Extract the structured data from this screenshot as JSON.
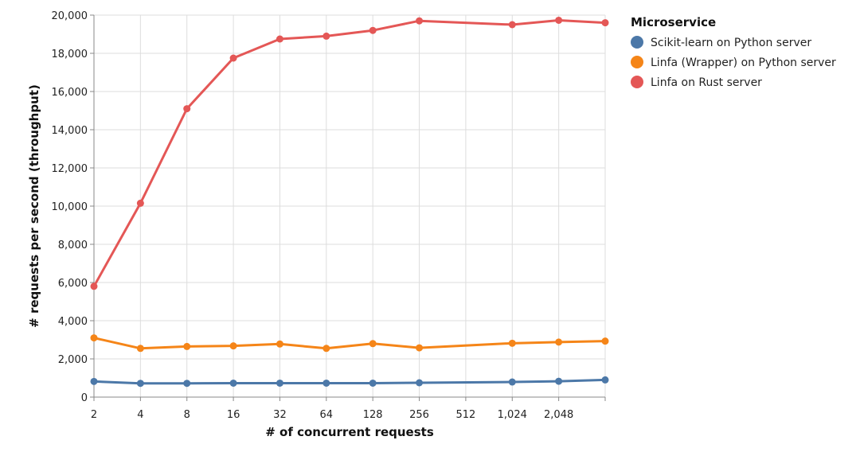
{
  "chart_data": {
    "type": "line",
    "title": "",
    "xlabel": "# of concurrent requests",
    "ylabel": "# requests per second (throughput)",
    "ylim": [
      0,
      20000
    ],
    "yticks": [
      0,
      2000,
      4000,
      6000,
      8000,
      10000,
      12000,
      14000,
      16000,
      18000,
      20000
    ],
    "ytick_labels": [
      "0",
      "2,000",
      "4,000",
      "6,000",
      "8,000",
      "10,000",
      "12,000",
      "14,000",
      "16,000",
      "18,000",
      "20,000"
    ],
    "xscale": "log2",
    "xlim": [
      2,
      4096
    ],
    "xticks": [
      2,
      4,
      8,
      16,
      32,
      64,
      128,
      256,
      512,
      1024,
      2048
    ],
    "xtick_labels": [
      "2",
      "4",
      "8",
      "16",
      "32",
      "64",
      "128",
      "256",
      "512",
      "1,024",
      "2,048"
    ],
    "grid": true,
    "legend_title": "Microservice",
    "legend_position": "top-right",
    "x": [
      2,
      4,
      8,
      16,
      32,
      64,
      128,
      256,
      1024,
      2048,
      4096
    ],
    "series": [
      {
        "name": "Scikit-learn on Python server",
        "color": "#4c78a8",
        "values": [
          820,
          720,
          720,
          730,
          730,
          730,
          730,
          750,
          790,
          830,
          900
        ]
      },
      {
        "name": "Linfa (Wrapper) on Python server",
        "color": "#f58518",
        "values": [
          3100,
          2550,
          2650,
          2680,
          2780,
          2550,
          2800,
          2580,
          2820,
          2880,
          2930
        ]
      },
      {
        "name": "Linfa on Rust server",
        "color": "#e45756",
        "values": [
          5800,
          10150,
          15100,
          17750,
          18750,
          18900,
          19200,
          19700,
          19500,
          19730,
          19600
        ]
      }
    ]
  }
}
